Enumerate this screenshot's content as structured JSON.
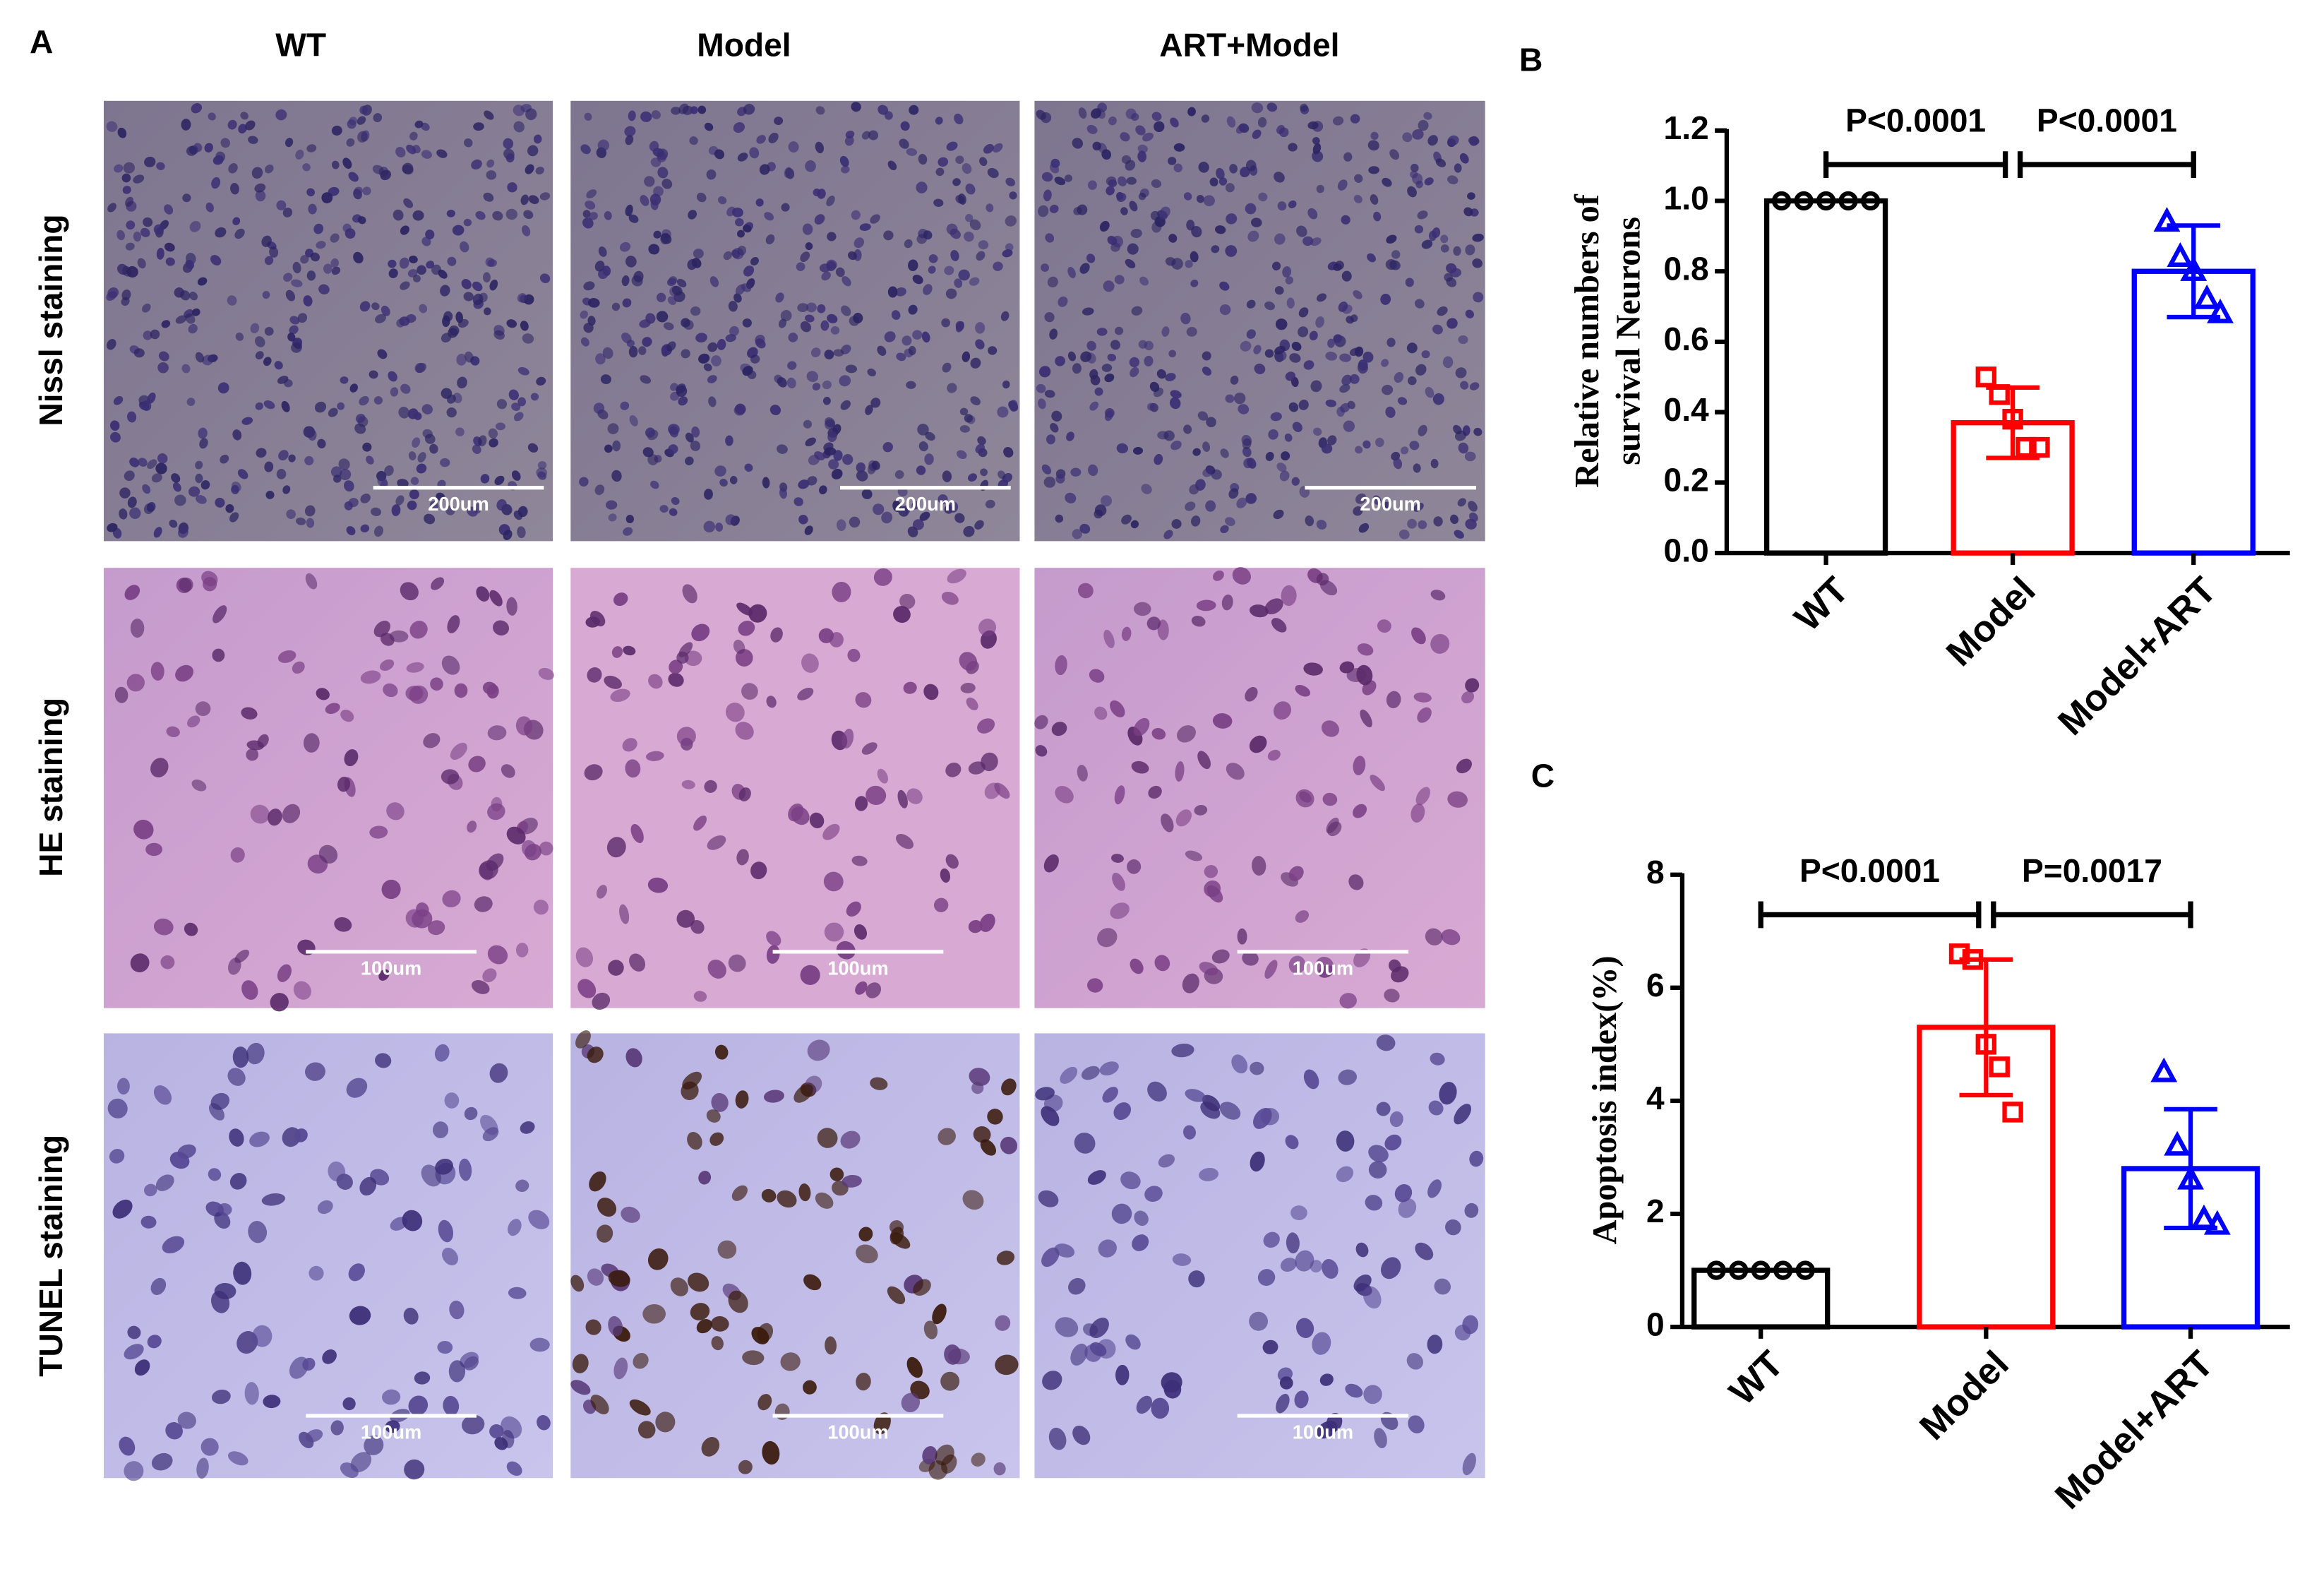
{
  "panel_labels": [
    "A",
    "B",
    "C"
  ],
  "panel_a": {
    "columns": [
      "WT",
      "Model",
      "ART+Model"
    ],
    "rows": [
      {
        "label": "Nissl staining",
        "scale_bar": "200um"
      },
      {
        "label": "HE staining",
        "scale_bar": "100um"
      },
      {
        "label": "TUNEL staining",
        "scale_bar": "100um"
      }
    ]
  },
  "chart_data": [
    {
      "type": "bar",
      "ylabel": [
        "Relative numbers of",
        "survival Neurons"
      ],
      "categories": [
        "WT",
        "Model",
        "Model+ART"
      ],
      "values": [
        1.0,
        0.37,
        0.8
      ],
      "errors": [
        0,
        0.1,
        0.13
      ],
      "points": [
        [
          1,
          1,
          1,
          1,
          1
        ],
        [
          0.5,
          0.45,
          0.38,
          0.3,
          0.3
        ],
        [
          0.94,
          0.84,
          0.8,
          0.72,
          0.68
        ]
      ],
      "colors": [
        "#000000",
        "#ff0000",
        "#0000ff"
      ],
      "markers": [
        "circle",
        "square",
        "triangle"
      ],
      "annotations": [
        "P<0.0001",
        "P<0.0001"
      ],
      "ylim": [
        0,
        1.2
      ],
      "yticks": [
        {
          "value": 0,
          "label": "0.0"
        },
        0.2,
        0.4,
        0.6,
        0.8,
        {
          "value": 1,
          "label": "1.0"
        },
        1.2
      ]
    },
    {
      "type": "bar",
      "ylabel": [
        "Apoptosis index(%)"
      ],
      "categories": [
        "WT",
        "Model",
        "Model+ART"
      ],
      "values": [
        1.0,
        5.3,
        2.8
      ],
      "errors": [
        0,
        1.2,
        1.05
      ],
      "points": [
        [
          1,
          1,
          1,
          1,
          1
        ],
        [
          6.6,
          6.5,
          5.0,
          4.6,
          3.8
        ],
        [
          4.5,
          3.2,
          2.6,
          1.9,
          1.8
        ]
      ],
      "colors": [
        "#000000",
        "#ff0000",
        "#0000ff"
      ],
      "markers": [
        "circle",
        "square",
        "triangle"
      ],
      "annotations": [
        "P<0.0001",
        "P=0.0017"
      ],
      "ylim": [
        0,
        8
      ],
      "yticks": [
        0,
        2,
        4,
        6,
        8
      ]
    }
  ]
}
